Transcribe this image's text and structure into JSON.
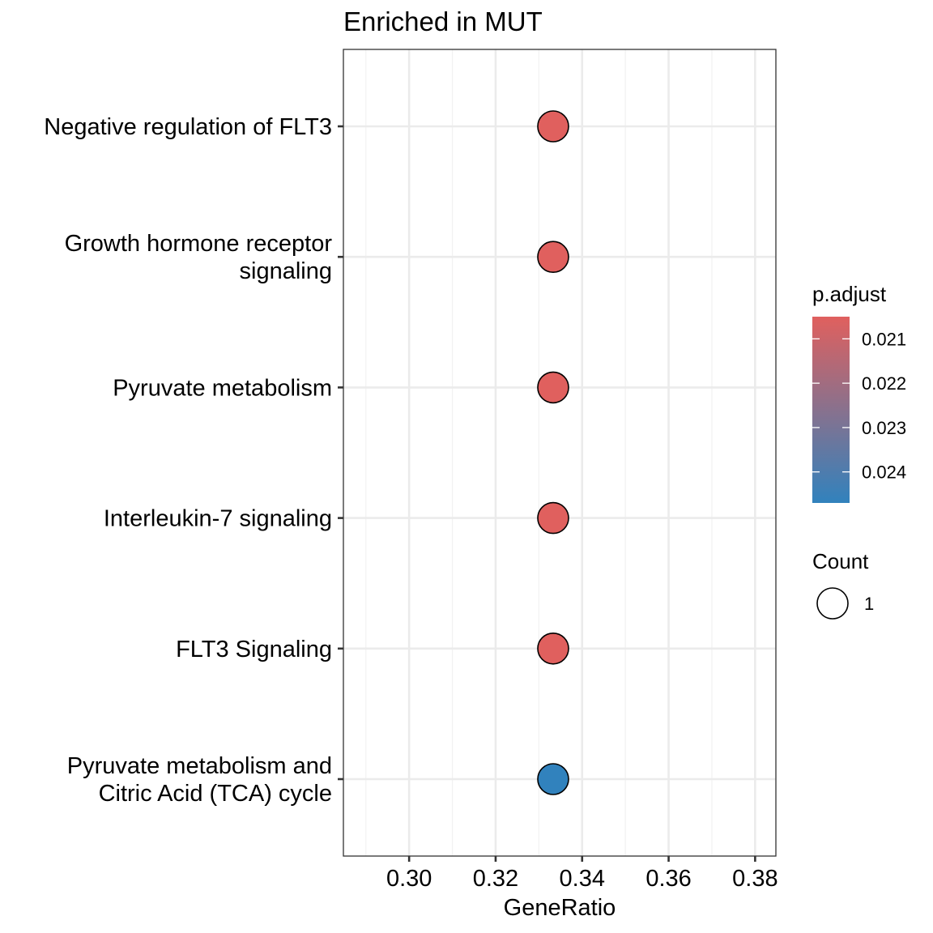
{
  "chart_data": {
    "type": "scatter",
    "title": "Enriched in MUT",
    "xlabel": "GeneRatio",
    "ylabel": "",
    "xlim": [
      0.2848,
      0.3848
    ],
    "x_ticks": [
      0.3,
      0.32,
      0.34,
      0.36,
      0.38
    ],
    "x_tick_labels": [
      "0.30",
      "0.32",
      "0.34",
      "0.36",
      "0.38"
    ],
    "categories": [
      [
        "Negative regulation of FLT3"
      ],
      [
        "Growth hormone receptor",
        "signaling"
      ],
      [
        "Pyruvate metabolism"
      ],
      [
        "Interleukin-7 signaling"
      ],
      [
        "FLT3 Signaling"
      ],
      [
        "Pyruvate metabolism and",
        "Citric Acid (TCA) cycle"
      ]
    ],
    "points": [
      {
        "x": 0.3333,
        "p_adjust": 0.0205,
        "count": 1
      },
      {
        "x": 0.3333,
        "p_adjust": 0.0205,
        "count": 1
      },
      {
        "x": 0.3333,
        "p_adjust": 0.0205,
        "count": 1
      },
      {
        "x": 0.3333,
        "p_adjust": 0.0205,
        "count": 1
      },
      {
        "x": 0.3333,
        "p_adjust": 0.0205,
        "count": 1
      },
      {
        "x": 0.3333,
        "p_adjust": 0.0247,
        "count": 1
      }
    ],
    "color_scale": {
      "title": "p.adjust",
      "range": [
        0.0205,
        0.0247
      ],
      "low_color": "#e0605e",
      "high_color": "#3182bd",
      "ticks": [
        0.021,
        0.022,
        0.023,
        0.024
      ],
      "tick_labels": [
        "0.021",
        "0.022",
        "0.023",
        "0.024"
      ]
    },
    "size_legend": {
      "title": "Count",
      "values": [
        1
      ],
      "labels": [
        "1"
      ]
    },
    "grid": true,
    "legend_position": "right"
  }
}
